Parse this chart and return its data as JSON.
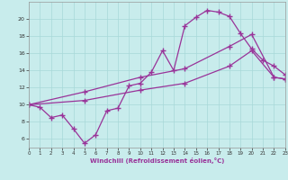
{
  "bg_color": "#c8ecec",
  "grid_color": "#a8d8d8",
  "line_color": "#993399",
  "xlabel": "Windchill (Refroidissement éolien,°C)",
  "xlim_min": 0,
  "xlim_max": 23,
  "ylim_min": 5,
  "ylim_max": 22,
  "yticks": [
    6,
    8,
    10,
    12,
    14,
    16,
    18,
    20
  ],
  "line1_x": [
    0,
    1,
    2,
    3,
    4,
    5,
    6,
    7,
    8,
    9,
    10,
    11,
    12,
    13,
    14,
    15,
    16,
    17,
    18,
    19,
    20,
    21,
    22,
    23
  ],
  "line1_y": [
    10.0,
    9.7,
    8.5,
    8.8,
    7.2,
    5.5,
    6.5,
    9.3,
    9.6,
    12.2,
    12.5,
    13.8,
    16.3,
    14.0,
    19.2,
    20.2,
    21.0,
    20.8,
    20.3,
    18.3,
    16.5,
    15.2,
    14.5,
    13.5
  ],
  "line2_x": [
    0,
    5,
    10,
    14,
    18,
    20,
    22,
    23
  ],
  "line2_y": [
    10.0,
    11.5,
    13.2,
    14.2,
    16.8,
    18.2,
    13.2,
    13.0
  ],
  "line3_x": [
    0,
    5,
    10,
    14,
    18,
    20,
    22,
    23
  ],
  "line3_y": [
    10.0,
    10.5,
    11.7,
    12.5,
    14.5,
    16.3,
    13.2,
    13.0
  ]
}
